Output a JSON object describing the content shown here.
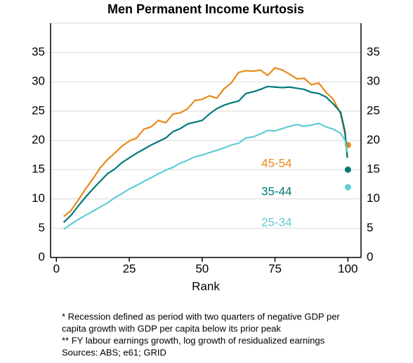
{
  "chart_data": {
    "type": "line",
    "title": "Men Permanent Income Kurtosis",
    "xlabel": "Rank",
    "x": [
      2.5,
      5,
      7.5,
      10,
      12.5,
      15,
      17.5,
      20,
      22.5,
      25,
      27.5,
      30,
      32.5,
      35,
      37.5,
      40,
      42.5,
      45,
      47.5,
      50,
      52.5,
      55,
      57.5,
      60,
      62.5,
      65,
      67.5,
      70,
      72.5,
      75,
      77.5,
      80,
      82.5,
      85,
      87.5,
      90,
      92.5,
      95,
      97.5,
      99,
      99.8
    ],
    "series": [
      {
        "name": "45-54",
        "color": "#e8891a",
        "values": [
          7.0,
          8,
          9.8,
          11.7,
          13.4,
          15.3,
          16.7,
          17.8,
          19,
          19.9,
          20.4,
          21.9,
          22.3,
          23.4,
          23.0,
          24.5,
          24.7,
          25.4,
          26.8,
          27.0,
          27.6,
          27.2,
          28.8,
          29.8,
          31.6,
          31.9,
          31.8,
          32.0,
          31.1,
          32.4,
          32.0,
          31.3,
          30.5,
          30.6,
          29.5,
          29.8,
          28.2,
          27.0,
          24.5,
          21,
          17.5
        ],
        "end_point": {
          "x": 100,
          "y": 19.2
        }
      },
      {
        "name": "35-44",
        "color": "#00797a",
        "values": [
          6.0,
          7.2,
          8.8,
          10.3,
          11.7,
          13.0,
          14.3,
          15.1,
          16.2,
          17.0,
          17.8,
          18.5,
          19.2,
          19.8,
          20.4,
          21.5,
          22,
          22.8,
          23.1,
          23.4,
          24.5,
          25.4,
          26.0,
          26.4,
          26.7,
          28.0,
          28.3,
          28.7,
          29.2,
          29.1,
          29.0,
          29.1,
          28.9,
          28.7,
          28.2,
          28.0,
          27.4,
          26.2,
          24.8,
          21.5,
          17
        ],
        "end_point": {
          "x": 100,
          "y": 15
        }
      },
      {
        "name": "25-34",
        "color": "#62ccd3",
        "values": [
          4.8,
          5.7,
          6.5,
          7.2,
          7.9,
          8.6,
          9.3,
          10.2,
          10.9,
          11.7,
          12.3,
          13,
          13.6,
          14.3,
          14.9,
          15.4,
          16.1,
          16.6,
          17.2,
          17.5,
          17.9,
          18.3,
          18.7,
          19.2,
          19.5,
          20.4,
          20.6,
          21.1,
          21.7,
          21.6,
          22,
          22.4,
          22.7,
          22.4,
          22.6,
          22.9,
          22.3,
          21.9,
          21.2,
          20,
          18
        ],
        "end_point": {
          "x": 100,
          "y": 12
        }
      }
    ],
    "xlim": [
      -2,
      104.5
    ],
    "xticks": [
      0,
      25,
      50,
      75,
      100
    ],
    "ylim": [
      0,
      40
    ],
    "yticks": [
      0,
      5,
      10,
      15,
      20,
      25,
      30,
      35
    ],
    "y2lim": [
      0,
      40
    ],
    "y2ticks": [
      0,
      5,
      10,
      15,
      20,
      25,
      30,
      35
    ],
    "grid": true,
    "footnotes": [
      "* Recession defined as period with two quarters of negative GDP per",
      "capita growth with GDP per capita below its prior peak",
      "** FY labour earnings growth, log growth of residualized earnings",
      "Sources: ABS; e61; GRID"
    ]
  }
}
